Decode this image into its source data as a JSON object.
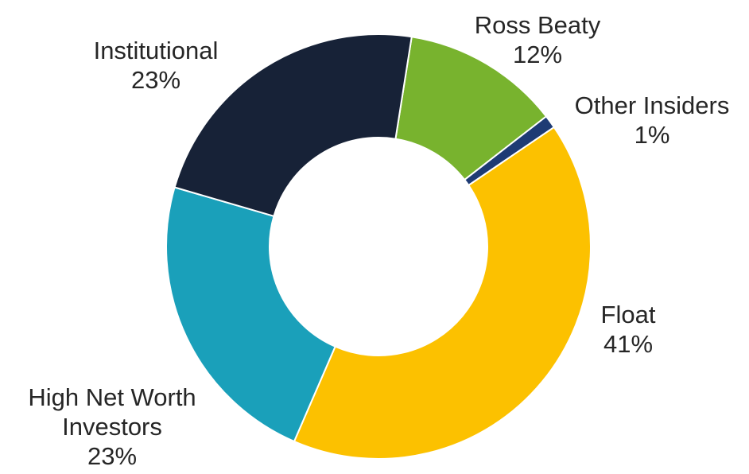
{
  "chart_data": {
    "type": "pie",
    "variant": "donut",
    "title": "",
    "legend": "none",
    "slices": [
      {
        "name": "Ross Beaty",
        "value": 12,
        "percent_label": "12%",
        "color": "#78b32e"
      },
      {
        "name": "Other Insiders",
        "value": 1,
        "percent_label": "1%",
        "color": "#1e3b74"
      },
      {
        "name": "Float",
        "value": 41,
        "percent_label": "41%",
        "color": "#fcc100"
      },
      {
        "name": "High Net Worth Investors",
        "name_lines": [
          "High Net Worth",
          "Investors"
        ],
        "value": 23,
        "percent_label": "23%",
        "color": "#1aa0ba"
      },
      {
        "name": "Institutional",
        "value": 23,
        "percent_label": "23%",
        "color": "#172237"
      }
    ]
  }
}
